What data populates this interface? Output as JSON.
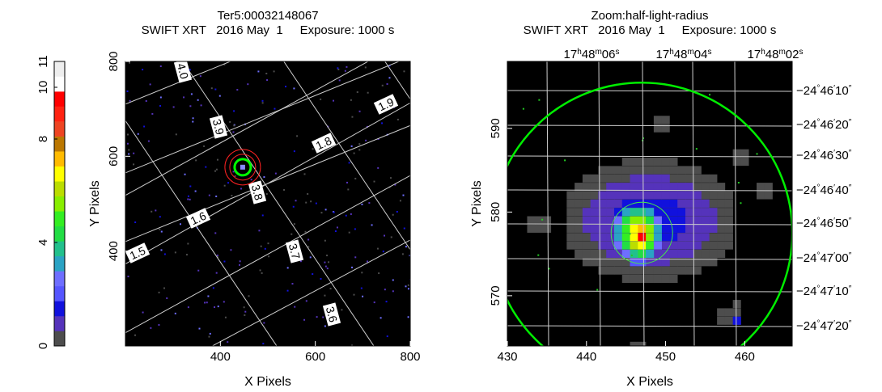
{
  "colorbar": {
    "ticks": [
      "0",
      "4",
      "8",
      "10",
      "11"
    ],
    "colors": [
      "#4d4d4d",
      "#5533bb",
      "#1111dd",
      "#5555ff",
      "#6e6eff",
      "#2aa3c4",
      "#22c08c",
      "#22dd44",
      "#33ee22",
      "#88ee00",
      "#bbdd00",
      "#ffff00",
      "#ffbb00",
      "#bb7700",
      "#ee4422",
      "#ff2211",
      "#ff0000",
      "#ffffff",
      "#eeeeee"
    ]
  },
  "left_panel": {
    "title_line1": "Ter5:00032148067",
    "title_line2": "SWIFT XRT   2016 May  1     Exposure: 1000 s",
    "xlabel": "X Pixels",
    "ylabel": "Y Pixels",
    "xticks": [
      400,
      600,
      800
    ],
    "yticks": [
      400,
      600,
      800
    ],
    "xlim": [
      200,
      800
    ],
    "ylim": [
      200,
      800
    ],
    "grid_labels": [
      "4.0",
      "3.9",
      "3.8",
      "3.7",
      "3.6",
      "1.9",
      "1.8",
      "1.6",
      "1.5"
    ],
    "source_circle_color": "#00ff00",
    "background_circle_color": "#ff2222"
  },
  "right_panel": {
    "title_line1": "Zoom:half-light-radius",
    "title_line2": "SWIFT XRT   2016 May  1     Exposure: 1000 s",
    "xlabel": "X Pixels",
    "ylabel": "Y Pixels",
    "xticks": [
      430,
      440,
      450,
      460
    ],
    "yticks": [
      570,
      580,
      590
    ],
    "xlim": [
      430,
      466
    ],
    "ylim": [
      564,
      598
    ],
    "ra_ticks": [
      {
        "h": "17",
        "m": "48",
        "s": "06"
      },
      {
        "h": "17",
        "m": "48",
        "s": "04"
      },
      {
        "h": "17",
        "m": "48",
        "s": "02"
      }
    ],
    "dec_ticks": [
      {
        "d": "−24",
        "m": "46",
        "s": "10"
      },
      {
        "d": "−24",
        "m": "46",
        "s": "20"
      },
      {
        "d": "−24",
        "m": "46",
        "s": "30"
      },
      {
        "d": "−24",
        "m": "46",
        "s": "40"
      },
      {
        "d": "−24",
        "m": "46",
        "s": "50"
      },
      {
        "d": "−24",
        "m": "47",
        "s": "00"
      },
      {
        "d": "−24",
        "m": "47",
        "s": "10"
      },
      {
        "d": "−24",
        "m": "47",
        "s": "20"
      }
    ],
    "large_circle_color": "#00ee00",
    "small_circle_color": "#44ee44"
  },
  "chart_data": [
    {
      "type": "heatmap",
      "title": "Ter5:00032148067",
      "subtitle": "SWIFT XRT   2016 May  1     Exposure: 1000 s",
      "xlabel": "X Pixels",
      "ylabel": "Y Pixels",
      "xlim": [
        200,
        800
      ],
      "ylim": [
        200,
        800
      ],
      "source_position": [
        447,
        577
      ],
      "colorbar_range": [
        0,
        11
      ]
    },
    {
      "type": "heatmap",
      "title": "Zoom:half-light-radius",
      "subtitle": "SWIFT XRT   2016 May  1     Exposure: 1000 s",
      "xlabel": "X Pixels",
      "ylabel": "Y Pixels",
      "xlim": [
        430,
        466
      ],
      "ylim": [
        564,
        598
      ],
      "peak_position": [
        447,
        577
      ],
      "colorbar_range": [
        0,
        11
      ]
    }
  ]
}
